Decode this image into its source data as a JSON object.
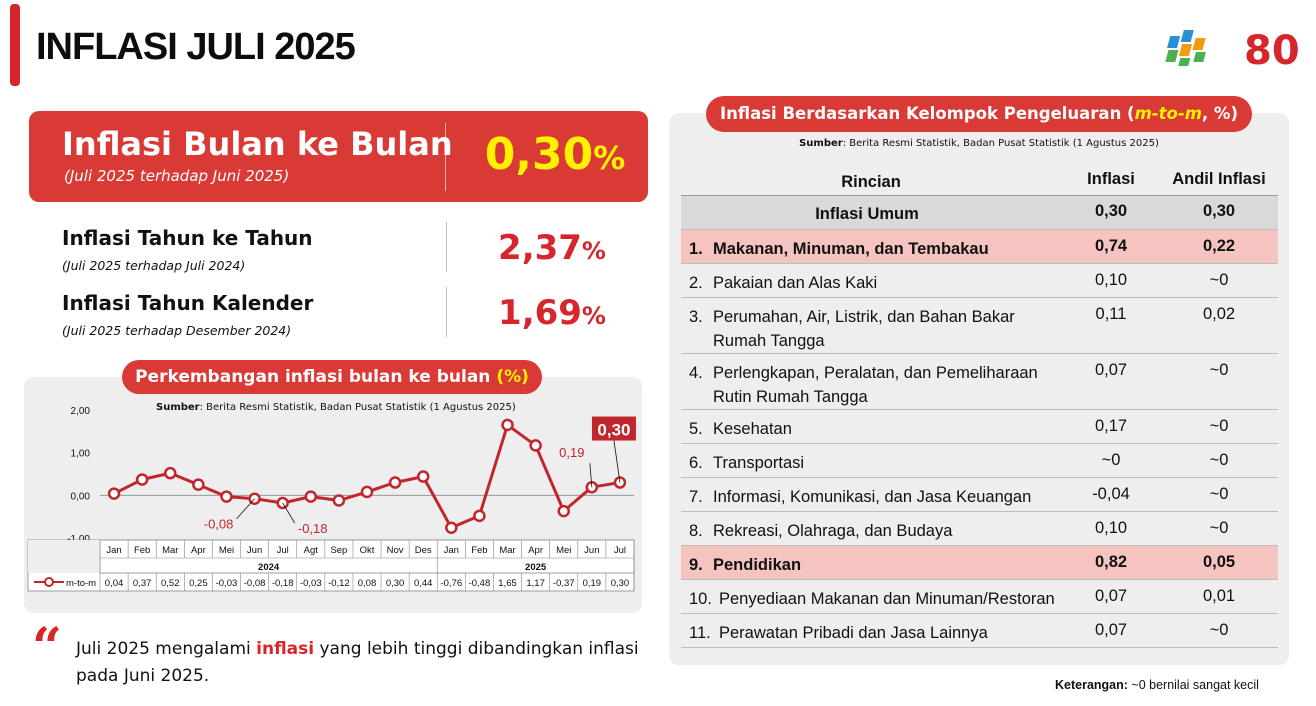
{
  "page": {
    "title": "INFLASI JULI 2025"
  },
  "logo": {
    "text": "80",
    "colors": [
      "#2b8fd8",
      "#f39c12",
      "#4caf50",
      "#d7262b"
    ]
  },
  "mtm": {
    "title": "Inflasi Bulan ke Bulan",
    "sub": "(Juli 2025 terhadap Juni 2025)",
    "value": "0,30",
    "unit": "%"
  },
  "yoy": {
    "title": "Inflasi Tahun ke Tahun",
    "sub": "(Juli 2025 terhadap Juli 2024)",
    "value": "2,37",
    "unit": "%"
  },
  "ytd": {
    "title": "Inflasi Tahun Kalender",
    "sub": "(Juli 2025 terhadap Desember 2024)",
    "value": "1,69",
    "unit": "%"
  },
  "chart_panel": {
    "title_main": "Perkembangan inflasi bulan ke bulan ",
    "title_unit": "(%)",
    "source_label": "Sumber",
    "source_text": ": Berita Resmi Statistik, Badan Pusat Statistik (1 Agustus 2025)"
  },
  "chart_data": {
    "type": "line",
    "title": "Perkembangan inflasi bulan ke bulan (%)",
    "series": [
      {
        "name": "m-to-m",
        "values": [
          0.04,
          0.37,
          0.52,
          0.25,
          -0.03,
          -0.08,
          -0.18,
          -0.03,
          -0.12,
          0.08,
          0.3,
          0.44,
          -0.76,
          -0.48,
          1.65,
          1.17,
          -0.37,
          0.19,
          0.3
        ],
        "labels": [
          "0,04",
          "0,37",
          "0,52",
          "0,25",
          "-0,03",
          "-0,08",
          "-0,18",
          "-0,03",
          "-0,12",
          "0,08",
          "0,30",
          "0,44",
          "-0,76",
          "-0,48",
          "1,65",
          "1,17",
          "-0,37",
          "0,19",
          "0,30"
        ]
      }
    ],
    "categories": [
      "Jan",
      "Feb",
      "Mar",
      "Apr",
      "Mei",
      "Jun",
      "Jul",
      "Agt",
      "Sep",
      "Okt",
      "Nov",
      "Des",
      "Jan",
      "Feb",
      "Mar",
      "Apr",
      "Mei",
      "Jun",
      "Jul"
    ],
    "years": [
      {
        "label": "2024",
        "count": 12
      },
      {
        "label": "2025",
        "count": 7
      }
    ],
    "ylim": [
      -1.0,
      2.0
    ],
    "yticks": [
      2.0,
      1.0,
      0.0,
      -1.0
    ],
    "ytick_labels": [
      "2,00",
      "1,00",
      "0,00",
      "-1,00"
    ],
    "annotations": [
      {
        "index": 5,
        "text": "-0,08"
      },
      {
        "index": 6,
        "text": "-0,18"
      },
      {
        "index": 17,
        "text": "0,19"
      },
      {
        "index": 18,
        "text": "0,30",
        "boxed": true
      }
    ],
    "colors": {
      "line": "#c0272d",
      "marker_fill": "#ffffff"
    },
    "grid": false,
    "legend": "bottom-left"
  },
  "quote": {
    "mark": "“",
    "before": "Juli 2025 mengalami ",
    "highlight": "inflasi",
    "after": "  yang lebih tinggi dibandingkan inflasi pada Juni 2025."
  },
  "table_panel": {
    "title_main": "Inflasi Berdasarkan Kelompok Pengeluaran (",
    "title_italic": "m-to-m",
    "title_end": ", %)",
    "source_label": "Sumber",
    "source_text": ": Berita Resmi Statistik, Badan Pusat Statistik (1 Agustus 2025)",
    "headers": [
      "Rincian",
      "Inflasi",
      "Andil Inflasi"
    ],
    "total": {
      "label": "Inflasi Umum",
      "inflasi": "0,30",
      "andil": "0,30"
    },
    "rows": [
      {
        "no": "1.",
        "label": "Makanan, Minuman, dan Tembakau",
        "inflasi": "0,74",
        "andil": "0,22",
        "highlight": true
      },
      {
        "no": "2.",
        "label": "Pakaian dan Alas Kaki",
        "inflasi": "0,10",
        "andil": "~0",
        "highlight": false
      },
      {
        "no": "3.",
        "label": "Perumahan, Air, Listrik, dan Bahan Bakar Rumah Tangga",
        "inflasi": "0,11",
        "andil": "0,02",
        "highlight": false
      },
      {
        "no": "4.",
        "label": "Perlengkapan, Peralatan, dan Pemeliharaan Rutin Rumah Tangga",
        "inflasi": "0,07",
        "andil": "~0",
        "highlight": false
      },
      {
        "no": "5.",
        "label": "Kesehatan",
        "inflasi": "0,17",
        "andil": "~0",
        "highlight": false
      },
      {
        "no": "6.",
        "label": "Transportasi",
        "inflasi": "~0",
        "andil": "~0",
        "highlight": false
      },
      {
        "no": "7.",
        "label": "Informasi, Komunikasi, dan Jasa Keuangan",
        "inflasi": "-0,04",
        "andil": "~0",
        "highlight": false
      },
      {
        "no": "8.",
        "label": "Rekreasi, Olahraga, dan Budaya",
        "inflasi": "0,10",
        "andil": "~0",
        "highlight": false
      },
      {
        "no": "9.",
        "label": "Pendidikan",
        "inflasi": "0,82",
        "andil": "0,05",
        "highlight": true
      },
      {
        "no": "10.",
        "label": "Penyediaan Makanan dan Minuman/Restoran",
        "inflasi": "0,07",
        "andil": "0,01",
        "highlight": false
      },
      {
        "no": "11.",
        "label": "Perawatan Pribadi dan Jasa Lainnya",
        "inflasi": "0,07",
        "andil": "~0",
        "highlight": false
      }
    ]
  },
  "note": {
    "label": "Keterangan:",
    "text": " ~0 bernilai sangat kecil"
  }
}
